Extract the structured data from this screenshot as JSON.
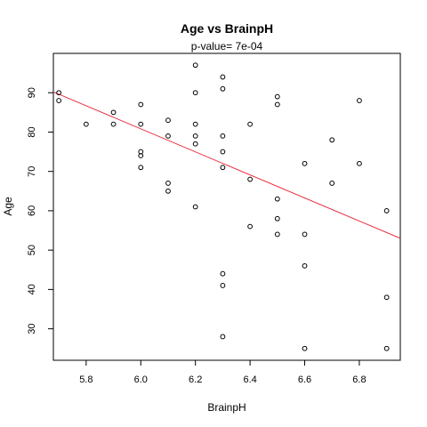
{
  "chart_data": {
    "type": "scatter",
    "title": "Age  vs  BrainpH",
    "subtitle": "p-value= 7e-04",
    "xlabel": "BrainpH",
    "ylabel": "Age",
    "xlim": [
      5.68,
      6.95
    ],
    "ylim": [
      22,
      100
    ],
    "xticks": [
      5.8,
      6.0,
      6.2,
      6.4,
      6.6,
      6.8
    ],
    "xtick_labels": [
      "5.8",
      "6.0",
      "6.2",
      "6.4",
      "6.6",
      "6.8"
    ],
    "yticks": [
      30,
      40,
      50,
      60,
      70,
      80,
      90
    ],
    "ytick_labels": [
      "30",
      "40",
      "50",
      "60",
      "70",
      "80",
      "90"
    ],
    "grid": false,
    "points": [
      {
        "x": 5.7,
        "y": 90
      },
      {
        "x": 5.7,
        "y": 88
      },
      {
        "x": 5.8,
        "y": 82
      },
      {
        "x": 5.9,
        "y": 85
      },
      {
        "x": 5.9,
        "y": 82
      },
      {
        "x": 6.0,
        "y": 87
      },
      {
        "x": 6.0,
        "y": 82
      },
      {
        "x": 6.0,
        "y": 75
      },
      {
        "x": 6.0,
        "y": 74
      },
      {
        "x": 6.0,
        "y": 71
      },
      {
        "x": 6.1,
        "y": 83
      },
      {
        "x": 6.1,
        "y": 79
      },
      {
        "x": 6.1,
        "y": 67
      },
      {
        "x": 6.1,
        "y": 65
      },
      {
        "x": 6.2,
        "y": 97
      },
      {
        "x": 6.2,
        "y": 90
      },
      {
        "x": 6.2,
        "y": 82
      },
      {
        "x": 6.2,
        "y": 79
      },
      {
        "x": 6.2,
        "y": 77
      },
      {
        "x": 6.2,
        "y": 61
      },
      {
        "x": 6.3,
        "y": 94
      },
      {
        "x": 6.3,
        "y": 91
      },
      {
        "x": 6.3,
        "y": 79
      },
      {
        "x": 6.3,
        "y": 75
      },
      {
        "x": 6.3,
        "y": 71
      },
      {
        "x": 6.3,
        "y": 44
      },
      {
        "x": 6.3,
        "y": 41
      },
      {
        "x": 6.3,
        "y": 28
      },
      {
        "x": 6.4,
        "y": 82
      },
      {
        "x": 6.4,
        "y": 68
      },
      {
        "x": 6.4,
        "y": 56
      },
      {
        "x": 6.5,
        "y": 89
      },
      {
        "x": 6.5,
        "y": 87
      },
      {
        "x": 6.5,
        "y": 63
      },
      {
        "x": 6.5,
        "y": 58
      },
      {
        "x": 6.5,
        "y": 54
      },
      {
        "x": 6.6,
        "y": 72
      },
      {
        "x": 6.6,
        "y": 54
      },
      {
        "x": 6.6,
        "y": 46
      },
      {
        "x": 6.6,
        "y": 25
      },
      {
        "x": 6.7,
        "y": 78
      },
      {
        "x": 6.7,
        "y": 67
      },
      {
        "x": 6.8,
        "y": 88
      },
      {
        "x": 6.8,
        "y": 72
      },
      {
        "x": 6.9,
        "y": 60
      },
      {
        "x": 6.9,
        "y": 38
      },
      {
        "x": 6.9,
        "y": 25
      }
    ],
    "regression_line": {
      "x0": 5.68,
      "y0": 90.2,
      "x1": 6.95,
      "y1": 53.0
    },
    "colors": {
      "points": "#000000",
      "regression_line": "#e8313f",
      "axes": "#000000"
    }
  }
}
